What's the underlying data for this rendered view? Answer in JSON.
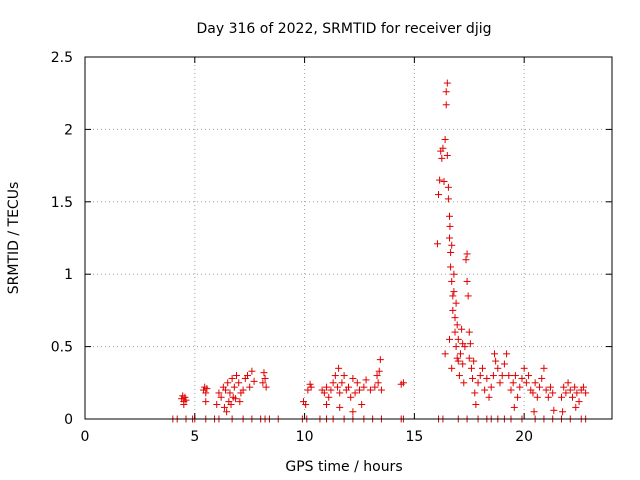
{
  "chart_data": {
    "type": "scatter",
    "title": "Day 316 of 2022, SRMTID for receiver djig",
    "xlabel": "GPS time / hours",
    "ylabel": "SRMTID / TECUs",
    "xlim": [
      0,
      24
    ],
    "ylim": [
      0,
      2.5
    ],
    "x_ticks": [
      0,
      5,
      10,
      15,
      20
    ],
    "y_ticks": [
      0,
      0.5,
      1,
      1.5,
      2,
      2.5
    ],
    "x_tick_labels": [
      "0",
      "5",
      "10",
      "15",
      "20"
    ],
    "y_tick_labels": [
      "0",
      "0.5",
      "1",
      "1.5",
      "2",
      "2.5"
    ],
    "grid": true,
    "marker": "+",
    "series": [
      {
        "name": "SRMTID",
        "color": "#e00000",
        "points": [
          [
            4.0,
            0
          ],
          [
            4.2,
            0
          ],
          [
            4.6,
            0
          ],
          [
            4.9,
            0
          ],
          [
            5.0,
            0
          ],
          [
            5.5,
            0
          ],
          [
            5.9,
            0
          ],
          [
            6.1,
            0
          ],
          [
            6.7,
            0
          ],
          [
            7.2,
            0
          ],
          [
            7.6,
            0
          ],
          [
            8.0,
            0
          ],
          [
            8.2,
            0
          ],
          [
            8.4,
            0
          ],
          [
            8.8,
            0
          ],
          [
            9.9,
            0
          ],
          [
            10.1,
            0
          ],
          [
            10.7,
            0
          ],
          [
            11.0,
            0
          ],
          [
            11.3,
            0
          ],
          [
            11.8,
            0
          ],
          [
            12.2,
            0
          ],
          [
            12.7,
            0
          ],
          [
            13.1,
            0
          ],
          [
            13.5,
            0
          ],
          [
            14.4,
            0
          ],
          [
            14.5,
            0
          ],
          [
            16.1,
            0
          ],
          [
            16.3,
            0
          ],
          [
            17.0,
            0
          ],
          [
            17.4,
            0
          ],
          [
            17.9,
            0
          ],
          [
            18.3,
            0
          ],
          [
            18.5,
            0
          ],
          [
            18.8,
            0
          ],
          [
            19.1,
            0
          ],
          [
            19.4,
            0
          ],
          [
            19.9,
            0
          ],
          [
            20.5,
            0
          ],
          [
            20.9,
            0
          ],
          [
            21.3,
            0
          ],
          [
            21.7,
            0
          ],
          [
            22.1,
            0
          ],
          [
            22.6,
            0
          ],
          [
            22.8,
            0
          ],
          [
            4.4,
            0.14
          ],
          [
            4.45,
            0.16
          ],
          [
            4.5,
            0.12
          ],
          [
            4.55,
            0.15
          ],
          [
            4.6,
            0.13
          ],
          [
            4.5,
            0.1
          ],
          [
            5.4,
            0.2
          ],
          [
            5.45,
            0.22
          ],
          [
            5.5,
            0.18
          ],
          [
            5.55,
            0.21
          ],
          [
            5.5,
            0.12
          ],
          [
            6.0,
            0.1
          ],
          [
            6.1,
            0.18
          ],
          [
            6.2,
            0.15
          ],
          [
            6.3,
            0.22
          ],
          [
            6.35,
            0.08
          ],
          [
            6.4,
            0.2
          ],
          [
            6.5,
            0.25
          ],
          [
            6.55,
            0.12
          ],
          [
            6.6,
            0.18
          ],
          [
            6.7,
            0.28
          ],
          [
            6.75,
            0.15
          ],
          [
            6.8,
            0.22
          ],
          [
            6.9,
            0.3
          ],
          [
            7.0,
            0.25
          ],
          [
            7.1,
            0.18
          ],
          [
            7.2,
            0.2
          ],
          [
            7.3,
            0.28
          ],
          [
            7.4,
            0.3
          ],
          [
            7.5,
            0.22
          ],
          [
            7.6,
            0.33
          ],
          [
            7.7,
            0.26
          ],
          [
            6.45,
            0.05
          ],
          [
            6.65,
            0.1
          ],
          [
            6.85,
            0.14
          ],
          [
            7.05,
            0.12
          ],
          [
            8.1,
            0.25
          ],
          [
            8.15,
            0.32
          ],
          [
            8.2,
            0.28
          ],
          [
            8.25,
            0.22
          ],
          [
            9.95,
            0.12
          ],
          [
            10.05,
            0.1
          ],
          [
            10.15,
            0.2
          ],
          [
            10.25,
            0.24
          ],
          [
            10.3,
            0.22
          ],
          [
            10.8,
            0.2
          ],
          [
            10.9,
            0.18
          ],
          [
            11.0,
            0.22
          ],
          [
            11.1,
            0.15
          ],
          [
            11.2,
            0.2
          ],
          [
            11.3,
            0.25
          ],
          [
            11.4,
            0.3
          ],
          [
            11.5,
            0.22
          ],
          [
            11.55,
            0.35
          ],
          [
            11.6,
            0.18
          ],
          [
            11.7,
            0.25
          ],
          [
            11.8,
            0.3
          ],
          [
            11.9,
            0.2
          ],
          [
            12.0,
            0.22
          ],
          [
            12.1,
            0.15
          ],
          [
            12.2,
            0.28
          ],
          [
            12.3,
            0.18
          ],
          [
            12.4,
            0.25
          ],
          [
            12.5,
            0.2
          ],
          [
            12.6,
            0.1
          ],
          [
            12.7,
            0.22
          ],
          [
            12.8,
            0.27
          ],
          [
            13.0,
            0.2
          ],
          [
            13.2,
            0.22
          ],
          [
            13.3,
            0.3
          ],
          [
            13.35,
            0.25
          ],
          [
            13.4,
            0.33
          ],
          [
            13.45,
            0.41
          ],
          [
            13.5,
            0.2
          ],
          [
            11.0,
            0.1
          ],
          [
            11.6,
            0.08
          ],
          [
            12.2,
            0.05
          ],
          [
            14.4,
            0.24
          ],
          [
            14.5,
            0.25
          ],
          [
            16.05,
            1.21
          ],
          [
            16.1,
            1.55
          ],
          [
            16.15,
            1.65
          ],
          [
            16.2,
            1.85
          ],
          [
            16.25,
            1.8
          ],
          [
            16.3,
            1.87
          ],
          [
            16.35,
            1.64
          ],
          [
            16.4,
            1.93
          ],
          [
            16.45,
            2.17
          ],
          [
            16.45,
            2.26
          ],
          [
            16.5,
            2.32
          ],
          [
            16.5,
            1.82
          ],
          [
            16.55,
            1.6
          ],
          [
            16.55,
            1.52
          ],
          [
            16.6,
            1.4
          ],
          [
            16.6,
            1.25
          ],
          [
            16.62,
            1.33
          ],
          [
            16.65,
            1.15
          ],
          [
            16.65,
            1.05
          ],
          [
            16.7,
            1.2
          ],
          [
            16.7,
            0.95
          ],
          [
            16.75,
            0.85
          ],
          [
            16.75,
            0.75
          ],
          [
            16.8,
            1.0
          ],
          [
            16.8,
            0.88
          ],
          [
            16.85,
            0.7
          ],
          [
            16.85,
            0.6
          ],
          [
            16.9,
            0.8
          ],
          [
            16.9,
            0.5
          ],
          [
            16.95,
            0.65
          ],
          [
            17.0,
            0.4
          ],
          [
            17.0,
            0.55
          ],
          [
            17.05,
            0.3
          ],
          [
            17.1,
            0.45
          ],
          [
            17.15,
            0.62
          ],
          [
            17.2,
            0.38
          ],
          [
            17.25,
            0.25
          ],
          [
            17.3,
            0.5
          ],
          [
            17.35,
            1.1
          ],
          [
            17.4,
            1.14
          ],
          [
            17.4,
            0.95
          ],
          [
            17.45,
            0.85
          ],
          [
            17.5,
            0.6
          ],
          [
            17.5,
            0.42
          ],
          [
            17.55,
            0.52
          ],
          [
            17.6,
            0.35
          ],
          [
            17.65,
            0.28
          ],
          [
            17.7,
            0.4
          ],
          [
            17.75,
            0.18
          ],
          [
            17.8,
            0.1
          ],
          [
            16.4,
            0.45
          ],
          [
            16.6,
            0.55
          ],
          [
            16.7,
            0.35
          ],
          [
            16.95,
            0.42
          ],
          [
            17.2,
            0.52
          ],
          [
            17.9,
            0.25
          ],
          [
            18.0,
            0.3
          ],
          [
            18.1,
            0.35
          ],
          [
            18.2,
            0.2
          ],
          [
            18.3,
            0.28
          ],
          [
            18.4,
            0.15
          ],
          [
            18.5,
            0.22
          ],
          [
            18.6,
            0.3
          ],
          [
            18.65,
            0.45
          ],
          [
            18.7,
            0.4
          ],
          [
            18.8,
            0.35
          ],
          [
            18.9,
            0.25
          ],
          [
            19.0,
            0.3
          ],
          [
            19.1,
            0.38
          ],
          [
            19.2,
            0.45
          ],
          [
            19.3,
            0.3
          ],
          [
            19.4,
            0.2
          ],
          [
            19.5,
            0.25
          ],
          [
            19.6,
            0.3
          ],
          [
            19.7,
            0.15
          ],
          [
            19.8,
            0.22
          ],
          [
            19.9,
            0.28
          ],
          [
            20.0,
            0.35
          ],
          [
            20.1,
            0.25
          ],
          [
            20.2,
            0.3
          ],
          [
            20.3,
            0.2
          ],
          [
            20.4,
            0.18
          ],
          [
            20.5,
            0.25
          ],
          [
            20.6,
            0.15
          ],
          [
            20.7,
            0.22
          ],
          [
            20.8,
            0.28
          ],
          [
            20.9,
            0.35
          ],
          [
            21.0,
            0.2
          ],
          [
            21.1,
            0.15
          ],
          [
            21.2,
            0.22
          ],
          [
            21.3,
            0.18
          ],
          [
            19.55,
            0.08
          ],
          [
            20.45,
            0.05
          ],
          [
            21.35,
            0.06
          ],
          [
            21.7,
            0.15
          ],
          [
            21.8,
            0.22
          ],
          [
            21.9,
            0.18
          ],
          [
            22.0,
            0.25
          ],
          [
            22.1,
            0.2
          ],
          [
            22.2,
            0.15
          ],
          [
            22.3,
            0.22
          ],
          [
            22.4,
            0.18
          ],
          [
            22.5,
            0.12
          ],
          [
            22.6,
            0.2
          ],
          [
            22.7,
            0.22
          ],
          [
            22.8,
            0.18
          ],
          [
            21.75,
            0.05
          ],
          [
            22.35,
            0.08
          ]
        ]
      }
    ]
  }
}
